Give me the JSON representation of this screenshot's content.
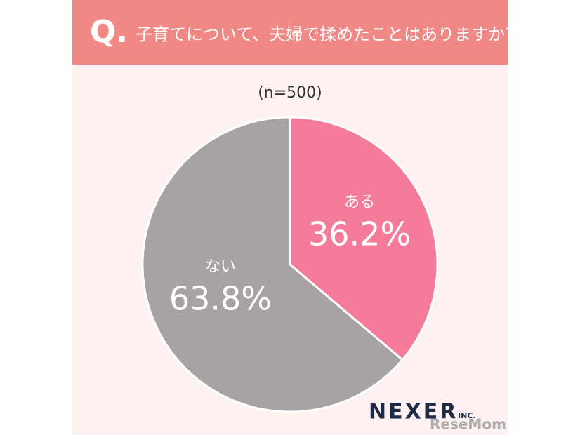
{
  "chart_data": {
    "type": "pie",
    "question_mark": "Q.",
    "title": "子育てについて、夫婦で揉めたことはありますか？",
    "subtitle": "(n=500)",
    "categories": [
      "ある",
      "ない"
    ],
    "values": [
      36.2,
      63.8
    ],
    "value_labels": [
      "36.2%",
      "63.8%"
    ],
    "colors": [
      "#f47b9a",
      "#a7a3a4"
    ],
    "logo": "NEXER",
    "logo_suffix": "INC.",
    "watermark": "ReseMom"
  }
}
